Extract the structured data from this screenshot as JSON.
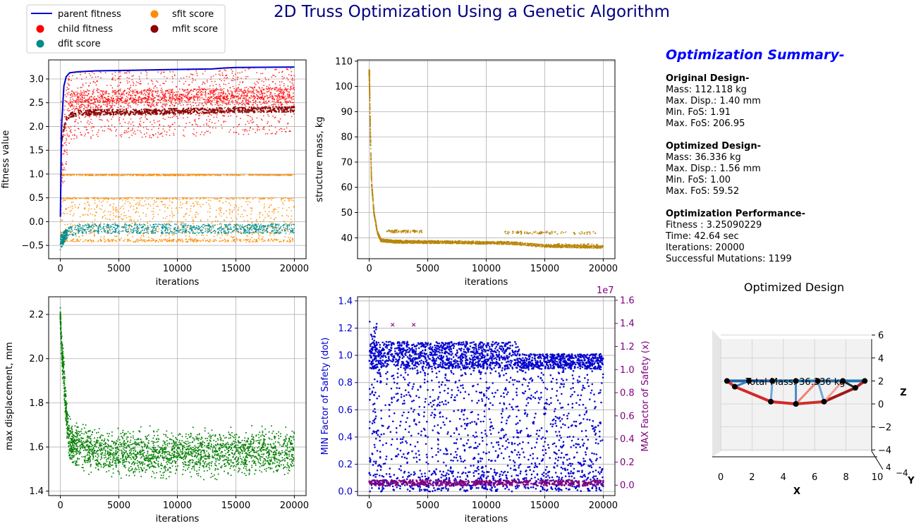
{
  "figure": {
    "title": "2D Truss Optimization Using a Genetic Algorithm",
    "title_color": "#000080"
  },
  "legend": {
    "entries": [
      {
        "label": "parent fitness",
        "marker": "line",
        "color": "#0000cd"
      },
      {
        "label": "child fitness",
        "marker": "dot",
        "color": "#ff0000"
      },
      {
        "label": "dfit score",
        "marker": "dot",
        "color": "#008b8b"
      },
      {
        "label": "sfit score",
        "marker": "dot",
        "color": "#ff8c00"
      },
      {
        "label": "mfit score",
        "marker": "dot",
        "color": "#8b0000"
      }
    ]
  },
  "summary": {
    "title": "Optimization Summary-",
    "title_color": "#0000ff",
    "sections": [
      {
        "heading": "Original Design-",
        "lines": [
          "Mass: 112.118 kg",
          "Max. Disp.: 1.40 mm",
          "Min. FoS: 1.91",
          "Max. FoS: 206.95"
        ]
      },
      {
        "heading": "Optimized Design-",
        "lines": [
          "Mass: 36.336 kg",
          "Max. Disp.: 1.56 mm",
          "Min. FoS: 1.00",
          "Max. FoS: 59.52"
        ]
      },
      {
        "heading": "Optimization Performance-",
        "lines": [
          "Fitness :  3.25090229",
          "Time:  42.64 sec",
          "Iterations: 20000",
          "Successful Mutations: 1199"
        ]
      }
    ]
  },
  "chart_data": [
    {
      "id": "fitness",
      "type": "scatter",
      "title": "",
      "xlabel": "iterations",
      "ylabel": "fitness value",
      "xlim": [
        -1000,
        21000
      ],
      "ylim": [
        -0.78,
        3.4
      ],
      "xticks": [
        0,
        5000,
        10000,
        15000,
        20000
      ],
      "yticks": [
        -0.5,
        0.0,
        0.5,
        1.0,
        1.5,
        2.0,
        2.5,
        3.0
      ],
      "ytick_labels": [
        "−0.5",
        "0.0",
        "0.5",
        "1.0",
        "1.5",
        "2.0",
        "2.5",
        "3.0"
      ],
      "grid": true,
      "series": [
        {
          "name": "parent fitness",
          "kind": "line",
          "color": "#0000cd",
          "x": [
            0,
            100,
            300,
            500,
            800,
            1500,
            3000,
            6000,
            10000,
            13000,
            14000,
            15000,
            20000
          ],
          "y": [
            0.1,
            2.0,
            2.85,
            3.05,
            3.13,
            3.15,
            3.17,
            3.18,
            3.2,
            3.21,
            3.23,
            3.24,
            3.25
          ]
        },
        {
          "name": "child fitness",
          "kind": "band",
          "color": "#ff0000",
          "x": [
            0,
            800,
            1500,
            5000,
            10000,
            12500,
            15000,
            20000
          ],
          "y_low": [
            0.2,
            1.7,
            1.75,
            1.75,
            1.78,
            1.8,
            1.82,
            1.85
          ],
          "y_high": [
            2.5,
            3.1,
            3.15,
            3.18,
            3.2,
            3.22,
            3.24,
            3.25
          ],
          "dense_levels": [
            {
              "x": [
                800,
                1500,
                5000,
                10000,
                15000,
                20000
              ],
              "y": [
                2.6,
                2.62,
                2.64,
                2.66,
                2.7,
                2.7
              ]
            },
            {
              "x": [
                800,
                5000,
                10000,
                15000,
                20000
              ],
              "y": [
                2.45,
                2.5,
                2.52,
                2.55,
                2.55
              ]
            }
          ]
        },
        {
          "name": "mfit score",
          "kind": "line",
          "color": "#8b0000",
          "x": [
            0,
            400,
            800,
            1500,
            3000,
            6000,
            10000,
            15000,
            20000
          ],
          "y": [
            1.5,
            2.1,
            2.25,
            2.28,
            2.3,
            2.3,
            2.32,
            2.35,
            2.36
          ]
        },
        {
          "name": "sfit score",
          "kind": "band",
          "color": "#ff8c00",
          "x": [
            0,
            800,
            5000,
            10000,
            15000,
            20000
          ],
          "y_low": [
            -0.4,
            -0.42,
            -0.42,
            -0.42,
            -0.42,
            -0.42
          ],
          "y_high": [
            0.5,
            0.5,
            0.5,
            0.5,
            0.5,
            0.5
          ],
          "dense_levels": [
            {
              "x": [
                0,
                12500,
                20000
              ],
              "y": [
                0.98,
                0.98,
                0.98
              ]
            },
            {
              "x": [
                0,
                20000
              ],
              "y": [
                0.5,
                0.5
              ]
            },
            {
              "x": [
                0,
                20000
              ],
              "y": [
                -0.4,
                -0.4
              ]
            }
          ]
        },
        {
          "name": "dfit score",
          "kind": "band",
          "color": "#008b8b",
          "x": [
            0,
            300,
            800,
            2000,
            10000,
            20000
          ],
          "y_low": [
            -0.6,
            -0.45,
            -0.3,
            -0.25,
            -0.25,
            -0.25
          ],
          "y_high": [
            -0.3,
            -0.2,
            -0.1,
            -0.05,
            -0.05,
            -0.05
          ]
        }
      ]
    },
    {
      "id": "mass",
      "type": "scatter",
      "title": "",
      "xlabel": "iterations",
      "ylabel": "structure mass, kg",
      "xlim": [
        -1000,
        21000
      ],
      "ylim": [
        31.7,
        110.5
      ],
      "xticks": [
        0,
        5000,
        10000,
        15000,
        20000
      ],
      "yticks": [
        40,
        50,
        60,
        70,
        80,
        90,
        100,
        110
      ],
      "grid": true,
      "series": [
        {
          "name": "structure mass",
          "color": "#b8860b",
          "x": [
            0,
            50,
            100,
            200,
            400,
            700,
            1000,
            2000,
            5000,
            8000,
            10000,
            12000,
            14000,
            15000,
            20000
          ],
          "y": [
            106,
            95,
            80,
            62,
            50,
            42,
            39,
            38.5,
            38.3,
            38.2,
            38.0,
            37.9,
            37.2,
            36.8,
            36.3
          ],
          "plateaus": [
            {
              "x": [
                1500,
                4500
              ],
              "y": 42.5
            },
            {
              "x": [
                11500,
                19500
              ],
              "y": 42.0
            },
            {
              "x": [
                15000,
                20000
              ],
              "y": 37.0
            }
          ]
        }
      ]
    },
    {
      "id": "disp",
      "type": "scatter",
      "title": "",
      "xlabel": "iterations",
      "ylabel": "max displacement, mm",
      "xlim": [
        -1000,
        21000
      ],
      "ylim": [
        1.38,
        2.28
      ],
      "xticks": [
        0,
        5000,
        10000,
        15000,
        20000
      ],
      "yticks": [
        1.4,
        1.6,
        1.8,
        2.0,
        2.2
      ],
      "grid": true,
      "series": [
        {
          "name": "max displacement",
          "color": "#008000",
          "x": [
            0,
            100,
            300,
            500,
            800,
            1500,
            3000,
            6000,
            10000,
            15000,
            20000
          ],
          "y_center": [
            2.2,
            2.05,
            1.92,
            1.75,
            1.62,
            1.6,
            1.58,
            1.57,
            1.57,
            1.58,
            1.58
          ],
          "y_spread": [
            0.04,
            0.06,
            0.08,
            0.08,
            0.1,
            0.1,
            0.1,
            0.1,
            0.1,
            0.1,
            0.1
          ]
        }
      ]
    },
    {
      "id": "fos",
      "type": "scatter",
      "title": "",
      "xlabel": "iterations",
      "ylabel": "MIN Factor of Safety (dot)",
      "ylabel_right": "MAX Factor of Safety (x)",
      "xlim": [
        -1000,
        21000
      ],
      "ylim": [
        -0.03,
        1.43
      ],
      "ylim_right": [
        -900000.0,
        16300000.0
      ],
      "xticks": [
        0,
        5000,
        10000,
        15000,
        20000
      ],
      "yticks": [
        0.0,
        0.2,
        0.4,
        0.6,
        0.8,
        1.0,
        1.2,
        1.4
      ],
      "yticks_right": [
        0.0,
        0.2,
        0.4,
        0.6,
        0.8,
        1.0,
        1.2,
        1.4,
        1.6
      ],
      "right_offset_label": "1e7",
      "left_color": "#0000cd",
      "right_color": "#800080",
      "grid": true,
      "series": [
        {
          "name": "MIN Factor of Safety",
          "color": "#0000cd",
          "band_top": {
            "x": [
              0,
              12500,
              13000,
              20000
            ],
            "y": [
              1.1,
              1.1,
              1.01,
              1.01
            ]
          },
          "band_bottom": 0.0,
          "dense_top": {
            "x": [
              0,
              12500,
              13000,
              20000
            ],
            "y": [
              0.9,
              0.9,
              0.9,
              0.9
            ]
          }
        },
        {
          "name": "MAX Factor of Safety",
          "color": "#800080",
          "x": [
            0,
            20000
          ],
          "y": [
            200000.0,
            200000.0
          ],
          "outliers": [
            {
              "x": 2000,
              "y": 13900000.0
            },
            {
              "x": 3800,
              "y": 13900000.0
            }
          ]
        }
      ]
    },
    {
      "id": "truss",
      "type": "scatter",
      "title": "Optimized Design",
      "annotation": "Total Mass: 36.336 kg",
      "xlabel": "X",
      "ylabel": "Y",
      "zlabel": "Z",
      "xlim": [
        0,
        10
      ],
      "zlim": [
        -4.5,
        6.5
      ],
      "xticks": [
        0,
        2,
        4,
        6,
        8,
        10
      ],
      "zticks": [
        -4,
        -2,
        0,
        2,
        4,
        6
      ],
      "ztick_labels": [
        "−4",
        "−2",
        "0",
        "2",
        "4",
        "6"
      ],
      "yticks_labels": [
        "−4",
        "4"
      ],
      "nodes": [
        [
          0.4,
          2
        ],
        [
          0.9,
          1.5
        ],
        [
          1.8,
          2
        ],
        [
          3.2,
          0.2
        ],
        [
          3.3,
          2
        ],
        [
          4.8,
          0
        ],
        [
          4.8,
          2
        ],
        [
          6.2,
          2
        ],
        [
          6.6,
          0.2
        ],
        [
          7.8,
          2
        ],
        [
          8.6,
          1.4
        ],
        [
          9.2,
          2
        ]
      ],
      "members": [
        {
          "a": 0,
          "b": 2,
          "color": "#1f5fa8",
          "w": 4
        },
        {
          "a": 2,
          "b": 4,
          "color": "#1f5fa8",
          "w": 4
        },
        {
          "a": 4,
          "b": 6,
          "color": "#1f77b4",
          "w": 4
        },
        {
          "a": 6,
          "b": 7,
          "color": "#1f77b4",
          "w": 4
        },
        {
          "a": 7,
          "b": 9,
          "color": "#2b6fa8",
          "w": 4
        },
        {
          "a": 9,
          "b": 11,
          "color": "#1f77b4",
          "w": 4
        },
        {
          "a": 0,
          "b": 1,
          "color": "#d62728",
          "w": 4
        },
        {
          "a": 1,
          "b": 3,
          "color": "#d62728",
          "w": 4
        },
        {
          "a": 3,
          "b": 5,
          "color": "#d62728",
          "w": 4
        },
        {
          "a": 5,
          "b": 8,
          "color": "#c8322c",
          "w": 4
        },
        {
          "a": 8,
          "b": 10,
          "color": "#a01818",
          "w": 4
        },
        {
          "a": 10,
          "b": 11,
          "color": "#b82020",
          "w": 4
        },
        {
          "a": 1,
          "b": 2,
          "color": "#3a7cc0",
          "w": 3
        },
        {
          "a": 3,
          "b": 4,
          "color": "#6fa8d8",
          "w": 3
        },
        {
          "a": 5,
          "b": 6,
          "color": "#4a8ac8",
          "w": 3
        },
        {
          "a": 8,
          "b": 7,
          "color": "#6fa8d8",
          "w": 3
        },
        {
          "a": 7,
          "b": 5,
          "color": "#f08070",
          "w": 3
        },
        {
          "a": 8,
          "b": 9,
          "color": "#f4a090",
          "w": 3
        },
        {
          "a": 9,
          "b": 10,
          "color": "#222222",
          "w": 3
        }
      ]
    }
  ]
}
